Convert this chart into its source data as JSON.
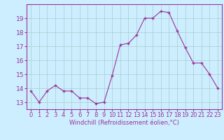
{
  "x": [
    0,
    1,
    2,
    3,
    4,
    5,
    6,
    7,
    8,
    9,
    10,
    11,
    12,
    13,
    14,
    15,
    16,
    17,
    18,
    19,
    20,
    21,
    22,
    23
  ],
  "y": [
    13.8,
    13.0,
    13.8,
    14.2,
    13.8,
    13.8,
    13.3,
    13.3,
    12.9,
    13.0,
    14.9,
    17.1,
    17.2,
    17.8,
    19.0,
    19.0,
    19.5,
    19.4,
    18.1,
    16.9,
    15.8,
    15.8,
    15.0,
    14.0
  ],
  "line_color": "#993399",
  "marker": "+",
  "marker_size": 3,
  "xlabel": "Windchill (Refroidissement éolien,°C)",
  "xlabel_fontsize": 6,
  "xtick_labels": [
    "0",
    "1",
    "2",
    "3",
    "4",
    "5",
    "6",
    "7",
    "8",
    "9",
    "10",
    "11",
    "12",
    "13",
    "14",
    "15",
    "16",
    "17",
    "18",
    "19",
    "20",
    "21",
    "22",
    "23"
  ],
  "ytick_labels": [
    "13",
    "14",
    "15",
    "16",
    "17",
    "18",
    "19"
  ],
  "ylim": [
    12.5,
    20.0
  ],
  "xlim": [
    -0.5,
    23.5
  ],
  "bg_color": "#cceeff",
  "grid_color": "#aacccc",
  "tick_fontsize": 6,
  "ytick_fontsize": 6.5
}
